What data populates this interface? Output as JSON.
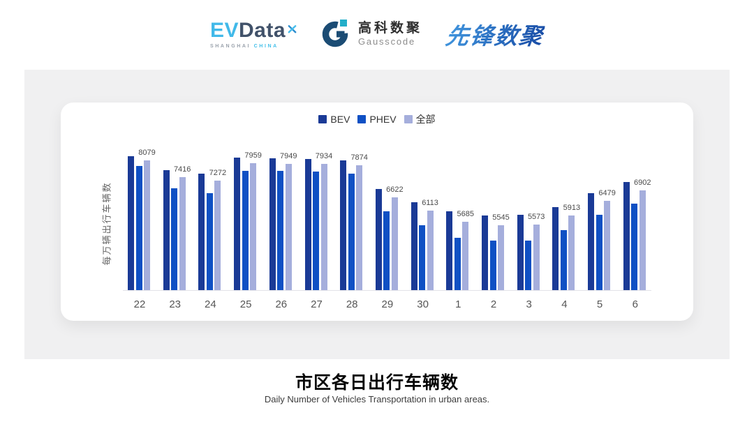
{
  "header": {
    "evdata_logo": {
      "ev": "EV",
      "data": "Data",
      "icon": "x-mark-icon",
      "sub_left": "SHANGHAI",
      "sub_right": "CHINA"
    },
    "gausscode_logo": {
      "icon": "gausscode-g-icon",
      "cn": "高科数聚",
      "en": "Gausscode"
    },
    "pioneer_logo": {
      "text": "先锋数聚"
    }
  },
  "colors": {
    "bev": "#1A3A96",
    "phev": "#0F50C4",
    "all": "#A5AEDC",
    "panel_bg": "#F0F0F1",
    "card_bg": "#FFFFFF",
    "axis_line": "#E3E3E8",
    "evdata_blue": "#41B9E9",
    "evdata_slate": "#41526A",
    "pioneer_gradient_start": "#3F93DC",
    "pioneer_gradient_end": "#1A4FA8"
  },
  "chart_data": {
    "type": "bar",
    "title": "市区各日出行车辆数",
    "subtitle": "Daily Number of Vehicles Transportation in urban areas.",
    "ylabel": "每万辆出行车辆数",
    "xlabel": "",
    "categories": [
      "22",
      "23",
      "24",
      "25",
      "26",
      "27",
      "28",
      "29",
      "30",
      "1",
      "2",
      "3",
      "4",
      "5",
      "6"
    ],
    "series": [
      {
        "name": "BEV",
        "color": "#1A3A96",
        "values": [
          8240,
          7700,
          7560,
          8170,
          8150,
          8130,
          8060,
          6950,
          6450,
          6090,
          5910,
          5950,
          6250,
          6800,
          7220
        ]
      },
      {
        "name": "PHEV",
        "color": "#0F50C4",
        "values": [
          7850,
          6990,
          6800,
          7670,
          7660,
          7630,
          7560,
          6090,
          5530,
          5050,
          4930,
          4930,
          5350,
          5950,
          6380
        ]
      },
      {
        "name": "全部",
        "color": "#A5AEDC",
        "values": [
          8079,
          7416,
          7272,
          7959,
          7949,
          7934,
          7874,
          6622,
          6113,
          5685,
          5545,
          5573,
          5913,
          6479,
          6902
        ],
        "data_labels": true
      }
    ],
    "value_labels": [
      8079,
      7416,
      7272,
      7959,
      7949,
      7934,
      7874,
      6622,
      6113,
      5685,
      5545,
      5573,
      5913,
      6479,
      6902
    ],
    "ylim": [
      3000,
      9000
    ],
    "grid": false,
    "legend_position": "top"
  }
}
